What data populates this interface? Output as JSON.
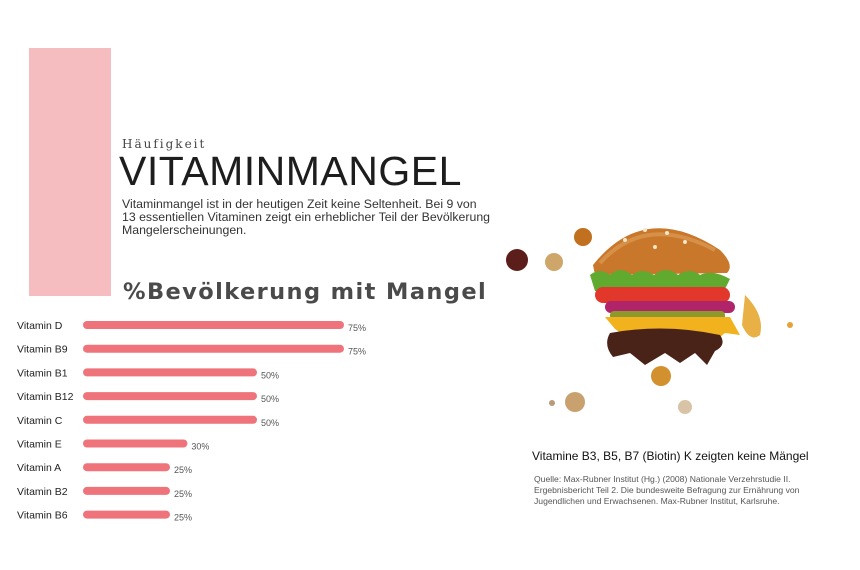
{
  "header": {
    "kicker": "Häufigkeit",
    "title": "VITAMINMANGEL",
    "intro": "Vitaminmangel ist in der heutigen Zeit keine Seltenheit. Bei 9 von 13 essentiellen Vitaminen zeigt ein erheblicher Teil der Bevölkerung Mangelerscheinungen."
  },
  "colors": {
    "accent_block": "#f6bdc1",
    "bar": "#ef737b"
  },
  "chart_data": {
    "type": "bar",
    "orientation": "horizontal",
    "title": "%Bevölkerung mit Mangel",
    "categories": [
      "Vitamin D",
      "Vitamin B9",
      "Vitamin B1",
      "Vitamin B12",
      "Vitamin C",
      "Vitamin E",
      "Vitamin A",
      "Vitamin B2",
      "Vitamin B6"
    ],
    "values": [
      75,
      75,
      50,
      50,
      50,
      30,
      25,
      25,
      25
    ],
    "value_labels": [
      "75%",
      "75%",
      "50%",
      "50%",
      "50%",
      "30%",
      "25%",
      "25%",
      "25%"
    ],
    "xlim": [
      0,
      100
    ],
    "grid": false,
    "legend": "none"
  },
  "illustration": {
    "icon": "burger-illustration"
  },
  "caption": "Vitamine B3, B5, B7 (Biotin) K zeigten keine Mängel",
  "source": "Quelle: Max-Rubner Institut (Hg.) (2008) Nationale  Verzehrstudie II. Ergebnisbericht Teil 2. Die bundesweite Befragung zur Ernährung von Jugendlichen und Erwachsenen. Max-Rubner Institut, Karlsruhe."
}
